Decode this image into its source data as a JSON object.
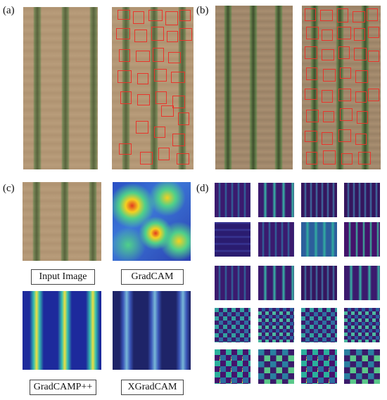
{
  "labels": {
    "a": "(a)",
    "b": "(b)",
    "c": "(c)",
    "d": "(d)"
  },
  "captions": {
    "input_image": "Input Image",
    "gradcam": "GradCAM",
    "gradcampp": "GradCAMP++",
    "xgradcam": "XGradCAM"
  },
  "colors": {
    "box": "#e8352c",
    "soil": "#b89c7a"
  }
}
